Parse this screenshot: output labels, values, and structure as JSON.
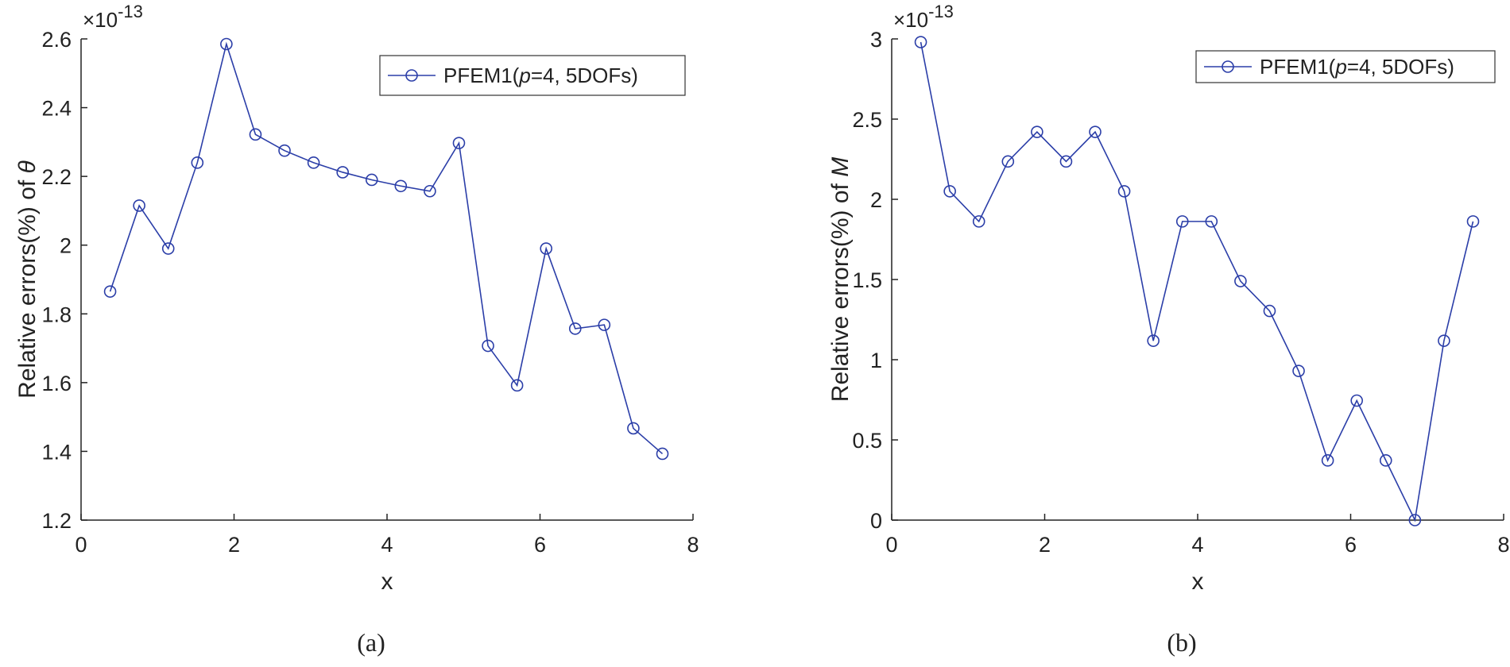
{
  "series_color": "#2b3ea8",
  "axis_color": "#222222",
  "chart_data": [
    {
      "type": "line",
      "caption": "(a)",
      "xlabel": "x",
      "ylabel_prefix": "Relative errors(%) of ",
      "ylabel_symbol": "θ",
      "exponent_prefix": "×10",
      "exponent_power": "-13",
      "xlim": [
        0,
        8
      ],
      "ylim": [
        1.2,
        2.6
      ],
      "xticks": [
        0,
        2,
        4,
        6,
        8
      ],
      "yticks": [
        1.2,
        1.4,
        1.6,
        1.8,
        2.0,
        2.2,
        2.4,
        2.6
      ],
      "ytick_labels": [
        "1.2",
        "1.4",
        "1.6",
        "1.8",
        "2",
        "2.2",
        "2.4",
        "2.6"
      ],
      "legend": {
        "position": "top-right",
        "name": "PFEM1(",
        "italic": "p",
        "rest": "=4, 5DOFs)"
      },
      "series": [
        {
          "name": "PFEM1(p=4, 5DOFs)",
          "x": [
            0.38,
            0.76,
            1.14,
            1.52,
            1.9,
            2.28,
            2.66,
            3.04,
            3.42,
            3.8,
            4.18,
            4.56,
            4.94,
            5.32,
            5.7,
            6.08,
            6.46,
            6.84,
            7.22,
            7.6
          ],
          "y": [
            1.865,
            2.115,
            1.99,
            2.24,
            2.585,
            2.322,
            2.275,
            2.24,
            2.212,
            2.19,
            2.172,
            2.157,
            2.297,
            1.707,
            1.592,
            1.99,
            1.757,
            1.768,
            1.467,
            1.393
          ]
        }
      ]
    },
    {
      "type": "line",
      "caption": "(b)",
      "xlabel": "x",
      "ylabel_prefix": "Relative errors(%) of ",
      "ylabel_symbol": "M",
      "exponent_prefix": "×10",
      "exponent_power": "-13",
      "xlim": [
        0,
        8
      ],
      "ylim": [
        0,
        3
      ],
      "xticks": [
        0,
        2,
        4,
        6,
        8
      ],
      "yticks": [
        0,
        0.5,
        1,
        1.5,
        2,
        2.5,
        3
      ],
      "ytick_labels": [
        "0",
        "0.5",
        "1",
        "1.5",
        "2",
        "2.5",
        "3"
      ],
      "legend": {
        "position": "top-right",
        "name": "PFEM1(",
        "italic": "p",
        "rest": "=4, 5DOFs)"
      },
      "series": [
        {
          "name": "PFEM1(p=4, 5DOFs)",
          "x": [
            0.38,
            0.76,
            1.14,
            1.52,
            1.9,
            2.28,
            2.66,
            3.04,
            3.42,
            3.8,
            4.18,
            4.56,
            4.94,
            5.32,
            5.7,
            6.08,
            6.46,
            6.84,
            7.22,
            7.6
          ],
          "y": [
            2.98,
            2.05,
            1.862,
            2.236,
            2.42,
            2.236,
            2.42,
            2.05,
            1.118,
            1.862,
            1.862,
            1.49,
            1.304,
            0.93,
            0.372,
            0.745,
            0.372,
            0.0,
            1.118,
            1.862
          ]
        }
      ]
    }
  ]
}
